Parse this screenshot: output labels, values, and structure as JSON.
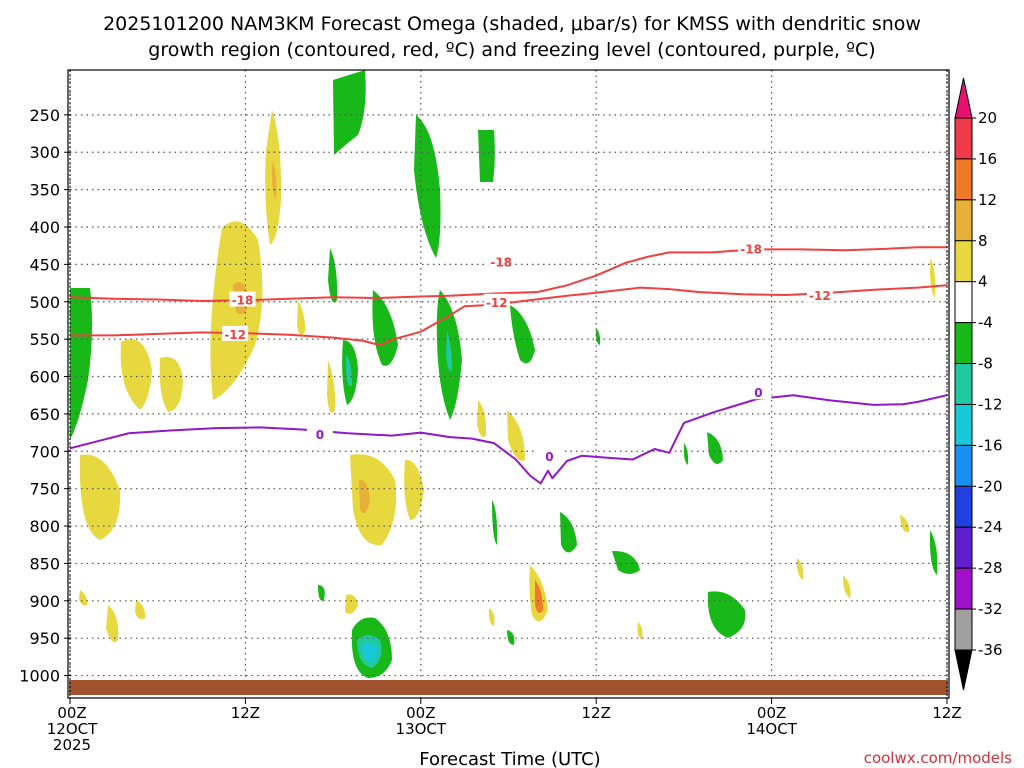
{
  "chart_data": {
    "type": "heatmap",
    "title_line1": "2025101200 NAM3KM Forecast Omega (shaded, μbar/s) for KMSS with dendritic snow",
    "title_line2": "growth region (contoured, red, ºC) and freezing level (contoured, purple, ºC)",
    "xlabel": "Forecast Time (UTC)",
    "credit": "coolwx.com/models",
    "x_range_hours": [
      0,
      60
    ],
    "y_range_hpa": [
      190,
      1030
    ],
    "y_ticks": [
      250,
      300,
      350,
      400,
      450,
      500,
      550,
      600,
      650,
      700,
      750,
      800,
      850,
      900,
      950,
      1000
    ],
    "x_ticks": [
      {
        "hour": 0,
        "lines": [
          "00Z",
          "12OCT",
          "2025"
        ]
      },
      {
        "hour": 12,
        "lines": [
          "12Z"
        ]
      },
      {
        "hour": 24,
        "lines": [
          "00Z",
          "13OCT"
        ]
      },
      {
        "hour": 36,
        "lines": [
          "12Z"
        ]
      },
      {
        "hour": 48,
        "lines": [
          "00Z",
          "14OCT"
        ]
      },
      {
        "hour": 60,
        "lines": [
          "12Z"
        ]
      }
    ],
    "colorbar": {
      "levels": [
        20,
        16,
        12,
        8,
        4,
        -4,
        -8,
        -12,
        -16,
        -20,
        -24,
        -28,
        -32,
        -36
      ],
      "colors": [
        "#f03a4a",
        "#f07a28",
        "#e8b038",
        "#e8d840",
        "#ffffff",
        "#18b818",
        "#20c8a0",
        "#18c8d8",
        "#1890f0",
        "#2040e0",
        "#6020d0",
        "#a010c8",
        "#a0a0a0"
      ],
      "top_color": "#e8106e",
      "bottom_color": "#000000"
    },
    "series": [
      {
        "name": "dgz_-18",
        "color": "#f04040",
        "label": "-18",
        "points": [
          [
            0,
            494
          ],
          [
            3,
            496
          ],
          [
            6,
            497
          ],
          [
            9,
            499
          ],
          [
            12,
            498
          ],
          [
            15,
            496
          ],
          [
            18,
            494
          ],
          [
            21,
            495
          ],
          [
            24,
            493
          ],
          [
            26,
            492
          ],
          [
            29,
            489
          ],
          [
            32,
            487
          ],
          [
            34,
            478
          ],
          [
            36,
            465
          ],
          [
            38,
            448
          ],
          [
            39.5,
            440
          ],
          [
            41,
            434
          ],
          [
            44,
            434
          ],
          [
            45.3,
            432
          ],
          [
            47,
            430
          ],
          [
            50,
            430
          ],
          [
            53,
            431
          ],
          [
            56,
            429
          ],
          [
            58,
            427
          ],
          [
            60,
            427
          ]
        ],
        "labels": [
          {
            "x": 11.8,
            "p": 497
          },
          {
            "x": 29.5,
            "p": 446
          },
          {
            "x": 46.6,
            "p": 429
          }
        ]
      },
      {
        "name": "dgz_-12",
        "color": "#f04040",
        "label": "-12",
        "points": [
          [
            0,
            545
          ],
          [
            3,
            545
          ],
          [
            6,
            543
          ],
          [
            9,
            541
          ],
          [
            12,
            542
          ],
          [
            15,
            544
          ],
          [
            18,
            548
          ],
          [
            20,
            552
          ],
          [
            21.2,
            558
          ],
          [
            22,
            551
          ],
          [
            24,
            540
          ],
          [
            26,
            518
          ],
          [
            27,
            506
          ],
          [
            29,
            504
          ],
          [
            31,
            499
          ],
          [
            34,
            492
          ],
          [
            36,
            488
          ],
          [
            39,
            481
          ],
          [
            41,
            483
          ],
          [
            43,
            487
          ],
          [
            46,
            490
          ],
          [
            49,
            491
          ],
          [
            52,
            488
          ],
          [
            55,
            484
          ],
          [
            58,
            481
          ],
          [
            60,
            478
          ]
        ],
        "labels": [
          {
            "x": 11.3,
            "p": 543
          },
          {
            "x": 29.2,
            "p": 500
          },
          {
            "x": 51.3,
            "p": 491
          }
        ]
      },
      {
        "name": "freezing_0",
        "color": "#9018c8",
        "label": "0",
        "points": [
          [
            0,
            696
          ],
          [
            2,
            686
          ],
          [
            4,
            676
          ],
          [
            7,
            672
          ],
          [
            10,
            669
          ],
          [
            13,
            668
          ],
          [
            16,
            671
          ],
          [
            19,
            676
          ],
          [
            22,
            679
          ],
          [
            24,
            675
          ],
          [
            26,
            681
          ],
          [
            27.5,
            683
          ],
          [
            29,
            689
          ],
          [
            30.5,
            711
          ],
          [
            31.5,
            733
          ],
          [
            32.2,
            743
          ],
          [
            32.7,
            726
          ],
          [
            33,
            736
          ],
          [
            34,
            713
          ],
          [
            35,
            706
          ],
          [
            37,
            709
          ],
          [
            38.5,
            711
          ],
          [
            40,
            697
          ],
          [
            41,
            702
          ],
          [
            42,
            662
          ],
          [
            44,
            648
          ],
          [
            47,
            630
          ],
          [
            49.5,
            625
          ],
          [
            52,
            632
          ],
          [
            55,
            638
          ],
          [
            57,
            637
          ],
          [
            58,
            634
          ],
          [
            60,
            625
          ]
        ],
        "labels": [
          {
            "x": 17.1,
            "p": 677
          },
          {
            "x": 32.8,
            "p": 706
          },
          {
            "x": 47.1,
            "p": 621
          }
        ]
      }
    ]
  }
}
